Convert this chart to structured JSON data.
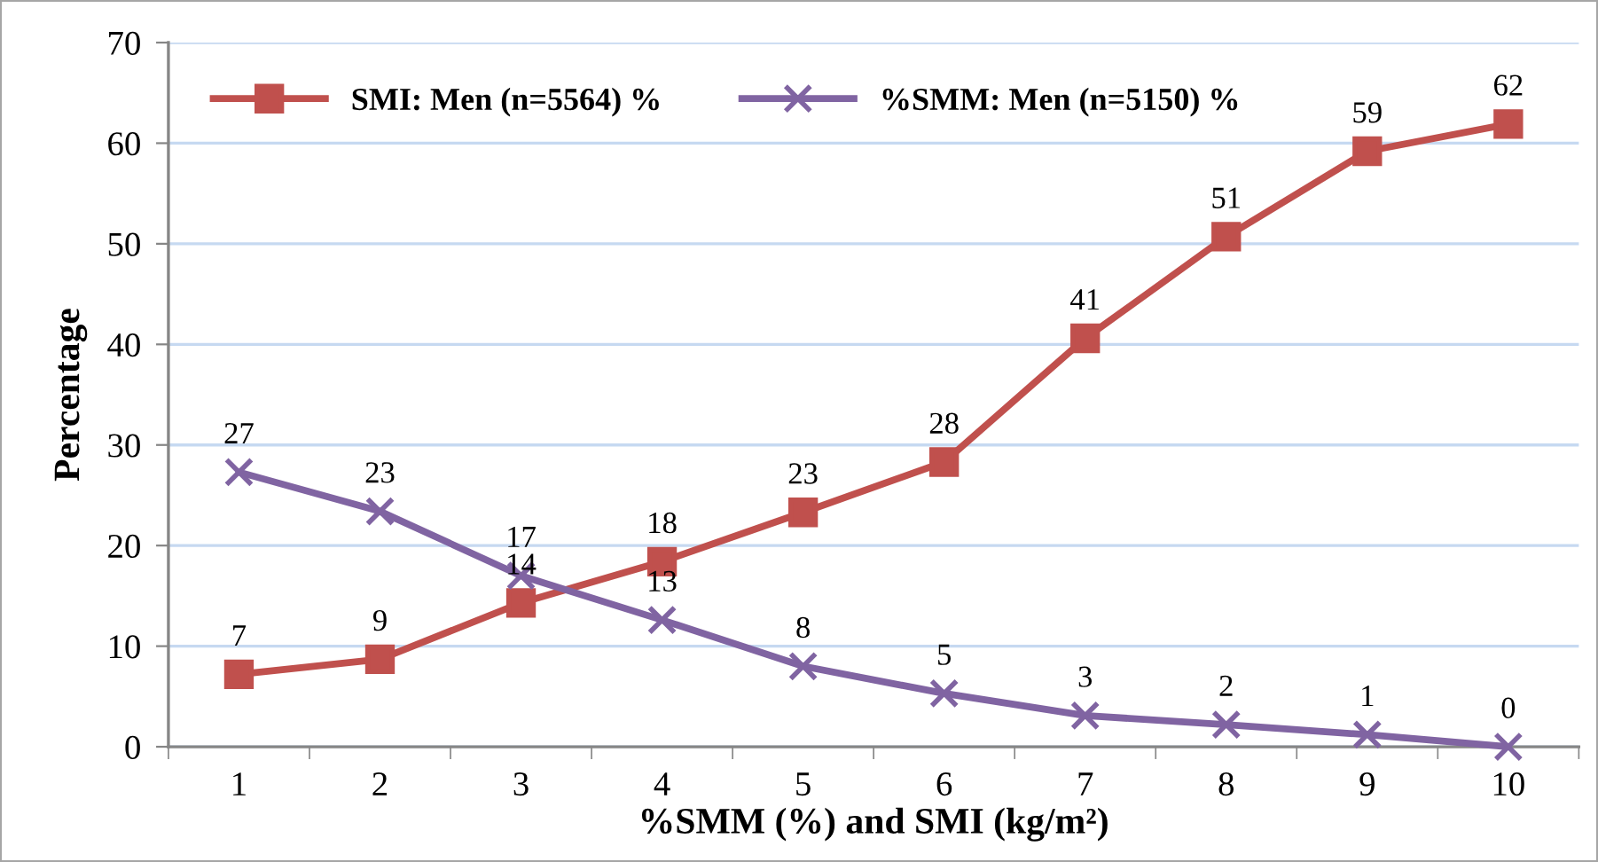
{
  "chart_data": {
    "type": "line",
    "xlabel": "%SMM (%) and SMI (kg/m²)",
    "ylabel": "Percentage",
    "categories": [
      "1",
      "2",
      "3",
      "4",
      "5",
      "6",
      "7",
      "8",
      "9",
      "10"
    ],
    "series": [
      {
        "name": "SMI: Men (n=5564) %",
        "color": "#c0504d",
        "marker": "square",
        "values": [
          7.2,
          8.7,
          14.3,
          18.4,
          23.3,
          28.3,
          40.6,
          50.7,
          59.2,
          61.9
        ],
        "value_labels": [
          "7",
          "9",
          "14",
          "18",
          "23",
          "28",
          "41",
          "51",
          "59",
          "62"
        ]
      },
      {
        "name": "%SMM: Men (n=5150) %",
        "color": "#8064a2",
        "marker": "cross",
        "values": [
          27.3,
          23.4,
          17.0,
          12.6,
          8.0,
          5.3,
          3.1,
          2.2,
          1.2,
          0
        ],
        "value_labels": [
          "27",
          "23",
          "17",
          "13",
          "8",
          "5",
          "3",
          "2",
          "1",
          "0"
        ]
      }
    ],
    "ylim": [
      0,
      70
    ],
    "yticks": [
      0,
      10,
      20,
      30,
      40,
      50,
      60,
      70
    ],
    "grid": "y",
    "legend": "top left",
    "line_style": "solid"
  }
}
